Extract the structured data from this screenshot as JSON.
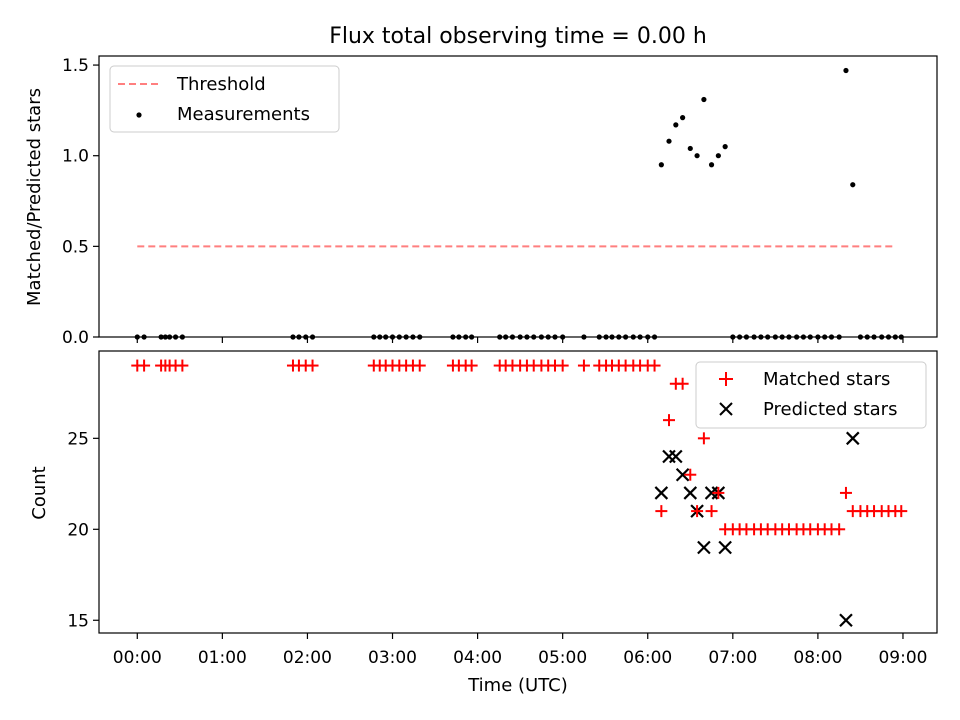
{
  "chart_data": [
    {
      "type": "scatter",
      "title": "Flux total observing time = 0.00 h",
      "xlabel": "",
      "ylabel": "Matched/Predicted stars",
      "xlim": [
        -0.45,
        9.4
      ],
      "ylim": [
        0,
        1.55
      ],
      "yticks": [
        0.0,
        0.5,
        1.0,
        1.5
      ],
      "ytick_labels": [
        "0.0",
        "0.5",
        "1.0",
        "1.5"
      ],
      "grid": false,
      "legend_position": "upper-left",
      "colors": {
        "threshold": "#ff7f7f",
        "measurements": "#000000"
      },
      "series": [
        {
          "name": "Threshold",
          "style": "dashed-line",
          "x": [
            0.0,
            8.92
          ],
          "y": [
            0.5,
            0.5
          ]
        },
        {
          "name": "Measurements",
          "style": "dot",
          "x": [
            0.0,
            0.08,
            0.28,
            0.33,
            0.38,
            0.45,
            0.53,
            1.83,
            1.9,
            1.98,
            2.06,
            2.78,
            2.85,
            2.92,
            3.0,
            3.08,
            3.16,
            3.24,
            3.32,
            3.71,
            3.78,
            3.86,
            3.93,
            4.26,
            4.33,
            4.41,
            4.5,
            4.58,
            4.66,
            4.75,
            4.83,
            4.91,
            5.0,
            5.25,
            5.43,
            5.51,
            5.58,
            5.66,
            5.74,
            5.83,
            5.91,
            6.0,
            6.08,
            6.16,
            6.25,
            6.33,
            6.41,
            6.5,
            6.58,
            6.66,
            6.75,
            6.83,
            6.91,
            7.0,
            7.08,
            7.16,
            7.25,
            7.33,
            7.41,
            7.5,
            7.58,
            7.66,
            7.75,
            7.83,
            7.91,
            8.0,
            8.08,
            8.16,
            8.25,
            8.33,
            8.41,
            8.5,
            8.58,
            8.66,
            8.75,
            8.83,
            8.91,
            8.98
          ],
          "y": [
            0,
            0,
            0,
            0,
            0,
            0,
            0,
            0,
            0,
            0,
            0,
            0,
            0,
            0,
            0,
            0,
            0,
            0,
            0,
            0,
            0,
            0,
            0,
            0,
            0,
            0,
            0,
            0,
            0,
            0,
            0,
            0,
            0,
            0,
            0,
            0,
            0,
            0,
            0,
            0,
            0,
            0,
            0,
            0.95,
            1.08,
            1.17,
            1.21,
            1.04,
            1.0,
            1.31,
            0.95,
            1.0,
            1.05,
            0,
            0,
            0,
            0,
            0,
            0,
            0,
            0,
            0,
            0,
            0,
            0,
            0,
            0,
            0,
            0,
            1.47,
            0.84,
            0,
            0,
            0,
            0,
            0,
            0,
            0
          ]
        }
      ]
    },
    {
      "type": "scatter",
      "title": "",
      "xlabel": "Time (UTC)",
      "ylabel": "Count",
      "xlim": [
        -0.45,
        9.4
      ],
      "ylim": [
        14.3,
        29.8
      ],
      "yticks": [
        15,
        20,
        25
      ],
      "ytick_labels": [
        "15",
        "20",
        "25"
      ],
      "xticks": [
        0,
        1,
        2,
        3,
        4,
        5,
        6,
        7,
        8,
        9
      ],
      "xtick_labels": [
        "00:00",
        "01:00",
        "02:00",
        "03:00",
        "04:00",
        "05:00",
        "06:00",
        "07:00",
        "08:00",
        "09:00"
      ],
      "grid": false,
      "legend_position": "upper-right",
      "colors": {
        "matched": "#ff0000",
        "predicted": "#000000"
      },
      "series": [
        {
          "name": "Matched stars",
          "marker": "plus",
          "x": [
            0.0,
            0.08,
            0.28,
            0.33,
            0.38,
            0.45,
            0.53,
            1.83,
            1.9,
            1.98,
            2.06,
            2.78,
            2.85,
            2.92,
            3.0,
            3.08,
            3.16,
            3.24,
            3.32,
            3.71,
            3.78,
            3.86,
            3.93,
            4.26,
            4.33,
            4.41,
            4.5,
            4.58,
            4.66,
            4.75,
            4.83,
            4.91,
            5.0,
            5.25,
            5.43,
            5.51,
            5.58,
            5.66,
            5.74,
            5.83,
            5.91,
            6.0,
            6.08,
            6.16,
            6.25,
            6.33,
            6.41,
            6.5,
            6.58,
            6.66,
            6.75,
            6.83,
            6.91,
            7.0,
            7.08,
            7.16,
            7.25,
            7.33,
            7.41,
            7.5,
            7.58,
            7.66,
            7.75,
            7.83,
            7.91,
            8.0,
            8.08,
            8.16,
            8.25,
            8.33,
            8.41,
            8.5,
            8.58,
            8.66,
            8.75,
            8.83,
            8.91,
            8.98
          ],
          "y": [
            29,
            29,
            29,
            29,
            29,
            29,
            29,
            29,
            29,
            29,
            29,
            29,
            29,
            29,
            29,
            29,
            29,
            29,
            29,
            29,
            29,
            29,
            29,
            29,
            29,
            29,
            29,
            29,
            29,
            29,
            29,
            29,
            29,
            29,
            29,
            29,
            29,
            29,
            29,
            29,
            29,
            29,
            29,
            21,
            26,
            28,
            28,
            23,
            21,
            25,
            21,
            22,
            20,
            20,
            20,
            20,
            20,
            20,
            20,
            20,
            20,
            20,
            20,
            20,
            20,
            20,
            20,
            20,
            20,
            22,
            21,
            21,
            21,
            21,
            21,
            21,
            21,
            21
          ]
        },
        {
          "name": "Predicted stars",
          "marker": "x",
          "x": [
            6.16,
            6.25,
            6.33,
            6.41,
            6.5,
            6.58,
            6.66,
            6.75,
            6.83,
            6.91,
            8.33,
            8.41
          ],
          "y": [
            22,
            24,
            24,
            23,
            22,
            21,
            19,
            22,
            22,
            19,
            15,
            25
          ]
        }
      ]
    }
  ]
}
